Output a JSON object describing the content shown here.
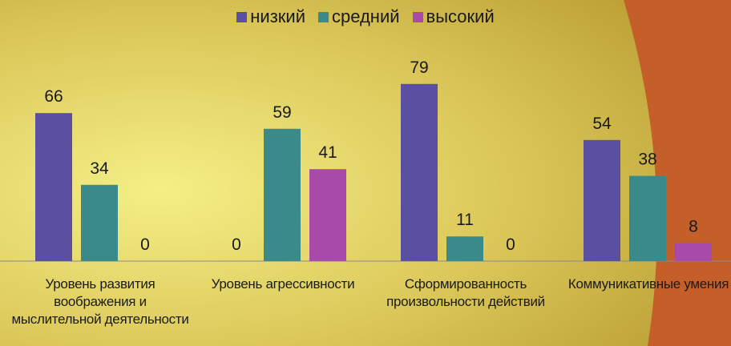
{
  "chart_data": {
    "type": "bar",
    "categories": [
      "Уровень развития воображения и мыслительной деятельности",
      "Уровень агрессивности",
      "Сформированность произвольности действий",
      "Коммуникативные умения"
    ],
    "series": [
      {
        "name": "низкий",
        "color": "#5a4fa0",
        "values": [
          66,
          0,
          79,
          54
        ]
      },
      {
        "name": "средний",
        "color": "#3b8a8a",
        "values": [
          34,
          59,
          11,
          38
        ]
      },
      {
        "name": "высокий",
        "color": "#a84aaa",
        "values": [
          0,
          41,
          0,
          8
        ]
      }
    ],
    "ylim": [
      0,
      100
    ],
    "grid": false,
    "legend_position": "top"
  }
}
